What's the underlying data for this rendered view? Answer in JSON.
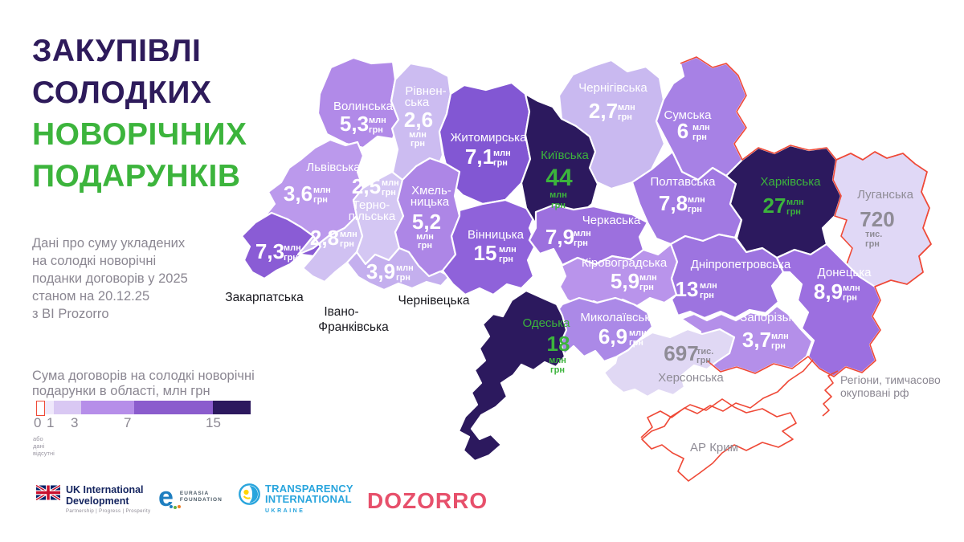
{
  "title": {
    "lines": [
      "ЗАКУПІВЛІ",
      "СОЛОДКИХ",
      "НОВОРІЧНИХ",
      "ПОДАРУНКІВ"
    ]
  },
  "subtitle_lines": [
    "Дані про суму укладених",
    "на солодкі новорічні",
    "поданки договорів у 2025",
    "станом на 20.12.25",
    "з BI Prozorro"
  ],
  "legend": {
    "title_lines": [
      "Сума договорів на солодкі новорічні",
      "подарунки в області, млн грн"
    ],
    "ticks": [
      "0",
      "1",
      "3",
      "7",
      "15"
    ],
    "zero_note_lines": [
      "або",
      "дані",
      "відсутні"
    ],
    "segments": [
      {
        "color": "#ffffff",
        "border": "#ef4937"
      },
      {
        "color": "#efe8fb",
        "border": ""
      },
      {
        "color": "#d9c8f3",
        "border": ""
      },
      {
        "color": "#b68ee9",
        "border": ""
      },
      {
        "color": "#8b5ccd",
        "border": ""
      },
      {
        "color": "#2c195e",
        "border": ""
      }
    ]
  },
  "map": {
    "occupied_note_lines": [
      "Регіони, тимчасово",
      "окуповані рф"
    ],
    "outside_labels": [
      {
        "id": "zakarpatska",
        "lines": [
          "Закарпатська"
        ]
      },
      {
        "id": "ivano",
        "lines": [
          "Івано-",
          "Франківська"
        ]
      },
      {
        "id": "chernivtsi",
        "lines": [
          "Чернівецька"
        ]
      }
    ],
    "regions": [
      {
        "id": "chernihiv",
        "name_lines": [
          "Чернігівська"
        ],
        "name_color": "#ffffff",
        "value": "2,7",
        "unit_lines": [
          "млн",
          "грн"
        ],
        "value_color": "#ffffff",
        "fill": "#c9b9f0",
        "occupied": false
      },
      {
        "id": "sumy",
        "name_lines": [
          "Сумська"
        ],
        "name_color": "#ffffff",
        "value": "6",
        "unit_lines": [
          "млн",
          "грн"
        ],
        "value_color": "#ffffff",
        "fill": "#a781e5",
        "occupied": false
      },
      {
        "id": "volyn",
        "name_lines": [
          "Волинська"
        ],
        "name_color": "#ffffff",
        "value": "5,3",
        "unit_lines": [
          "млн",
          "грн"
        ],
        "value_color": "#ffffff",
        "fill": "#b18ae8",
        "occupied": false
      },
      {
        "id": "rivne",
        "name_lines": [
          "Рівнен-",
          "ська"
        ],
        "name_color": "#ffffff",
        "value": "2,6",
        "unit_lines": [
          "млн",
          "грн"
        ],
        "value_color": "#ffffff",
        "fill": "#ccbcf1",
        "occupied": false
      },
      {
        "id": "zhytomyr",
        "name_lines": [
          "Житомирська"
        ],
        "name_color": "#ffffff",
        "value": "7,1",
        "unit_lines": [
          "млн",
          "грн"
        ],
        "value_color": "#ffffff",
        "fill": "#8257d3",
        "occupied": false
      },
      {
        "id": "lviv",
        "name_lines": [
          "Львівська"
        ],
        "name_color": "#ffffff",
        "value": "3,6",
        "unit_lines": [
          "млн",
          "грн"
        ],
        "value_color": "#ffffff",
        "fill": "#bb99ec",
        "occupied": false
      },
      {
        "id": "ternopil",
        "name_lines": [
          "Терно-",
          "пільська"
        ],
        "name_color": "#ffffff",
        "value": "2,5",
        "unit_lines": [
          "млн",
          "грн"
        ],
        "value_color": "#ffffff",
        "fill": "#d4c7f3",
        "occupied": false
      },
      {
        "id": "khmelnytskyi",
        "name_lines": [
          "Хмель-",
          "ницька"
        ],
        "name_color": "#ffffff",
        "value": "5,2",
        "unit_lines": [
          "млн",
          "грн"
        ],
        "value_color": "#ffffff",
        "fill": "#ad86e6",
        "occupied": false
      },
      {
        "id": "zakarpattia",
        "name_lines": [],
        "name_color": "#ffffff",
        "value": "7,3",
        "unit_lines": [
          "млн",
          "грн"
        ],
        "value_color": "#ffffff",
        "fill": "#8a5cd5",
        "occupied": false
      },
      {
        "id": "ivano",
        "name_lines": [],
        "name_color": "#ffffff",
        "value": "2,8",
        "unit_lines": [
          "млн",
          "грн"
        ],
        "value_color": "#ffffff",
        "fill": "#d0c1f2",
        "occupied": false
      },
      {
        "id": "chernivtsi",
        "name_lines": [],
        "name_color": "#ffffff",
        "value": "3,9",
        "unit_lines": [
          "млн",
          "грн"
        ],
        "value_color": "#ffffff",
        "fill": "#c4afee",
        "occupied": false
      },
      {
        "id": "vinnytsia",
        "name_lines": [
          "Вінницька"
        ],
        "name_color": "#ffffff",
        "value": "15",
        "unit_lines": [
          "млн",
          "грн"
        ],
        "value_color": "#ffffff",
        "fill": "#8f62da",
        "occupied": false
      },
      {
        "id": "kyiv",
        "name_lines": [
          "Київська"
        ],
        "name_color": "#3cb43c",
        "value": "44",
        "unit_lines": [
          "млн",
          "грн"
        ],
        "value_color": "#3cb43c",
        "fill": "#2c195e",
        "occupied": false
      },
      {
        "id": "cherkasy",
        "name_lines": [
          "Черкаська"
        ],
        "name_color": "#ffffff",
        "value": "7,9",
        "unit_lines": [
          "млн",
          "грн"
        ],
        "value_color": "#ffffff",
        "fill": "#9c70de",
        "occupied": false
      },
      {
        "id": "poltava",
        "name_lines": [
          "Полтавська"
        ],
        "name_color": "#ffffff",
        "value": "7,8",
        "unit_lines": [
          "млн",
          "грн"
        ],
        "value_color": "#ffffff",
        "fill": "#a179e2",
        "occupied": false
      },
      {
        "id": "kharkiv",
        "name_lines": [
          "Харківська"
        ],
        "name_color": "#3cb43c",
        "value": "27",
        "unit_lines": [
          "млн",
          "грн"
        ],
        "value_color": "#3cb43c",
        "fill": "#2c195e",
        "occupied": false
      },
      {
        "id": "luhansk",
        "name_lines": [
          "Луганська"
        ],
        "name_color": "#8f8c96",
        "value": "720",
        "unit_lines": [
          "тис.",
          "грн"
        ],
        "value_color": "#8f8c96",
        "fill": "#e0d8f6",
        "occupied": true
      },
      {
        "id": "kirovohrad",
        "name_lines": [
          "Кіровоградська"
        ],
        "name_color": "#ffffff",
        "value": "5,9",
        "unit_lines": [
          "млн",
          "грн"
        ],
        "value_color": "#ffffff",
        "fill": "#b994eb",
        "occupied": false
      },
      {
        "id": "dnipro",
        "name_lines": [
          "Дніпропетровська"
        ],
        "name_color": "#ffffff",
        "value": "13",
        "unit_lines": [
          "млн",
          "грн"
        ],
        "value_color": "#ffffff",
        "fill": "#9d74e0",
        "occupied": false
      },
      {
        "id": "donetsk",
        "name_lines": [
          "Донецька"
        ],
        "name_color": "#ffffff",
        "value": "8,9",
        "unit_lines": [
          "млн",
          "грн"
        ],
        "value_color": "#ffffff",
        "fill": "#9c6fe0",
        "occupied": false
      },
      {
        "id": "zaporizhzhia",
        "name_lines": [
          "Запорізька"
        ],
        "name_color": "#ffffff",
        "value": "3,7",
        "unit_lines": [
          "млн",
          "грн"
        ],
        "value_color": "#ffffff",
        "fill": "#b48fe9",
        "occupied": false
      },
      {
        "id": "mykolaiv",
        "name_lines": [
          "Миколаївська"
        ],
        "name_color": "#ffffff",
        "value": "6,9",
        "unit_lines": [
          "млн",
          "грн"
        ],
        "value_color": "#ffffff",
        "fill": "#ab89e7",
        "occupied": false
      },
      {
        "id": "kherson",
        "name_lines": [
          "Херсонська"
        ],
        "name_color": "#8f8c96",
        "value": "697",
        "unit_lines": [
          "тис.",
          "грн"
        ],
        "value_color": "#8f8c96",
        "fill": "#e0d8f4",
        "occupied": false
      },
      {
        "id": "odesa",
        "name_lines": [
          "Одеська"
        ],
        "name_color": "#3cb43c",
        "value": "18",
        "unit_lines": [
          "млн",
          "грн"
        ],
        "value_color": "#3cb43c",
        "fill": "#2c195e",
        "occupied": false
      },
      {
        "id": "crimea",
        "name_lines": [
          "АР Крим"
        ],
        "name_color": "#8f8c96",
        "value": null,
        "unit_lines": [],
        "value_color": "#8f8c96",
        "fill": "#ffffff",
        "occupied": true
      }
    ]
  },
  "footer": {
    "uk": {
      "line1": "UK International",
      "line2": "Development",
      "tagline": "Partnership   |   Progress   |   Prosperity"
    },
    "eurasia": {
      "line1": "EURASIA",
      "line2": "FOUNDATION"
    },
    "ti": {
      "line1": "TRANSPARENCY",
      "line2": "INTERNATIONAL",
      "line3": "UKRAINE"
    },
    "dozorro": {
      "text": "DOZORRO"
    }
  },
  "colors": {
    "accent_green": "#3cb43c",
    "title_purple": "#2e1b5b",
    "occupied_red": "#ef4937",
    "muted_gray": "#8b8792"
  }
}
